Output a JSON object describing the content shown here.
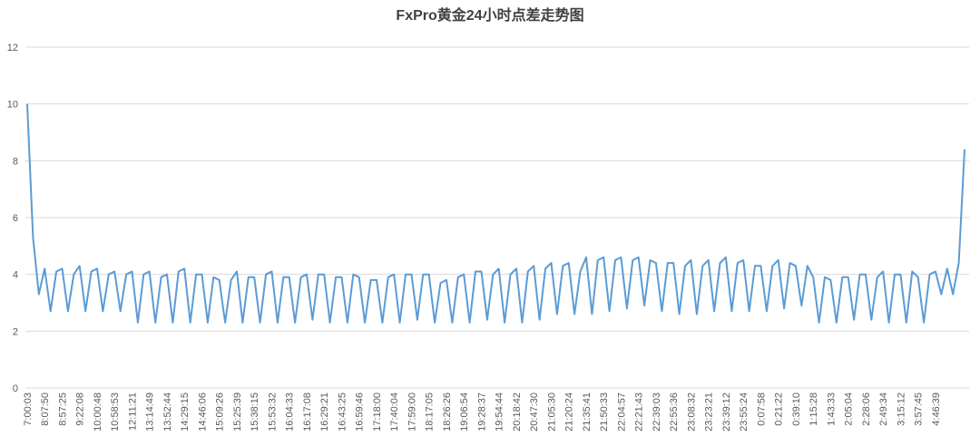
{
  "chart_data": {
    "type": "line",
    "title": "FxPro黄金24小时点差走势图",
    "categories": [
      "7:00:03",
      null,
      null,
      "8:07:50",
      null,
      null,
      "8:57:25",
      null,
      null,
      "9:22:08",
      null,
      null,
      "10:00:48",
      null,
      null,
      "10:58:53",
      null,
      null,
      "12:11:21",
      null,
      null,
      "13:14:49",
      null,
      null,
      "13:52:44",
      null,
      null,
      "14:29:15",
      null,
      null,
      "14:46:06",
      null,
      null,
      "15:09:26",
      null,
      null,
      "15:25:39",
      null,
      null,
      "15:38:15",
      null,
      null,
      "15:53:32",
      null,
      null,
      "16:04:33",
      null,
      null,
      "16:17:08",
      null,
      null,
      "16:29:21",
      null,
      null,
      "16:43:25",
      null,
      null,
      "16:59:46",
      null,
      null,
      "17:18:00",
      null,
      null,
      "17:40:04",
      null,
      null,
      "17:59:00",
      null,
      null,
      "18:17:05",
      null,
      null,
      "18:26:26",
      null,
      null,
      "19:06:54",
      null,
      null,
      "19:28:37",
      null,
      null,
      "19:54:44",
      null,
      null,
      "20:18:42",
      null,
      null,
      "20:47:30",
      null,
      null,
      "21:05:30",
      null,
      null,
      "21:20:24",
      null,
      null,
      "21:35:41",
      null,
      null,
      "21:50:33",
      null,
      null,
      "22:04:57",
      null,
      null,
      "22:21:43",
      null,
      null,
      "22:39:03",
      null,
      null,
      "22:55:36",
      null,
      null,
      "23:08:32",
      null,
      null,
      "23:23:21",
      null,
      null,
      "23:39:12",
      null,
      null,
      "23:55:24",
      null,
      null,
      "0:07:58",
      null,
      null,
      "0:21:22",
      null,
      null,
      "0:39:10",
      null,
      null,
      "1:15:28",
      null,
      null,
      "1:43:33",
      null,
      null,
      "2:05:04",
      null,
      null,
      "2:28:06",
      null,
      null,
      "2:49:34",
      null,
      null,
      "3:15:12",
      null,
      null,
      "3:57:45",
      null,
      null,
      "4:46:39",
      null,
      null,
      null,
      null,
      null
    ],
    "series": [
      {
        "color": "#5b9bd5",
        "values": [
          10,
          5.3,
          3.3,
          4.2,
          2.7,
          4.1,
          4.2,
          2.7,
          4.0,
          4.3,
          2.7,
          4.1,
          4.2,
          2.7,
          4.0,
          4.1,
          2.7,
          4.0,
          4.1,
          2.3,
          4.0,
          4.1,
          2.3,
          3.9,
          4.0,
          2.3,
          4.1,
          4.2,
          2.3,
          4.0,
          4.0,
          2.3,
          3.9,
          3.8,
          2.3,
          3.8,
          4.1,
          2.3,
          3.9,
          3.9,
          2.3,
          4.0,
          4.1,
          2.3,
          3.9,
          3.9,
          2.3,
          3.9,
          4.0,
          2.4,
          4.0,
          4.0,
          2.3,
          3.9,
          3.9,
          2.3,
          4.0,
          3.9,
          2.3,
          3.8,
          3.8,
          2.3,
          3.9,
          4.0,
          2.3,
          4.0,
          4.0,
          2.4,
          4.0,
          4.0,
          2.3,
          3.7,
          3.8,
          2.3,
          3.9,
          4.0,
          2.3,
          4.1,
          4.1,
          2.4,
          4.0,
          4.2,
          2.3,
          4.0,
          4.2,
          2.3,
          4.1,
          4.3,
          2.4,
          4.2,
          4.4,
          2.6,
          4.3,
          4.4,
          2.6,
          4.1,
          4.6,
          2.6,
          4.5,
          4.6,
          2.7,
          4.5,
          4.6,
          2.8,
          4.5,
          4.6,
          2.9,
          4.5,
          4.4,
          2.7,
          4.4,
          4.4,
          2.6,
          4.3,
          4.5,
          2.6,
          4.3,
          4.5,
          2.7,
          4.4,
          4.6,
          2.7,
          4.4,
          4.5,
          2.7,
          4.3,
          4.3,
          2.7,
          4.3,
          4.5,
          2.8,
          4.4,
          4.3,
          2.9,
          4.3,
          3.9,
          2.3,
          3.9,
          3.8,
          2.3,
          3.9,
          3.9,
          2.4,
          4.0,
          4.0,
          2.4,
          3.9,
          4.1,
          2.3,
          4.0,
          4.0,
          2.3,
          4.1,
          3.9,
          2.3,
          4.0,
          4.1,
          3.3,
          4.2,
          3.3,
          4.4,
          8.4
        ]
      }
    ],
    "ylim": [
      0,
      12
    ],
    "yticks": [
      0,
      2,
      4,
      6,
      8,
      10,
      12
    ],
    "grid": true
  }
}
